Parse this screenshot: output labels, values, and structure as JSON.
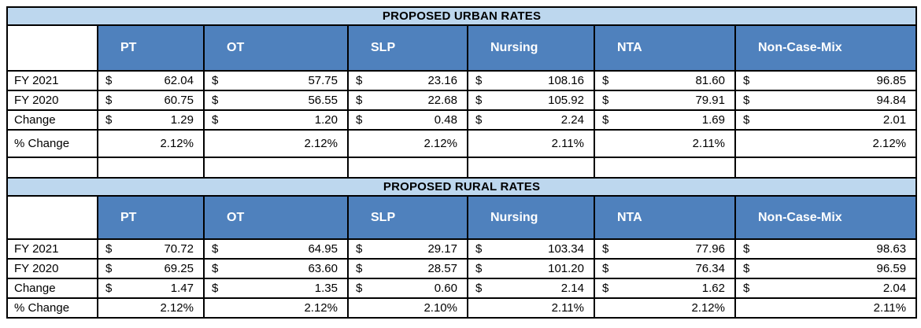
{
  "colors": {
    "title_bg": "#bdd7ee",
    "header_bg": "#4f81bd",
    "header_text": "#ffffff",
    "border": "#000000",
    "text": "#000000"
  },
  "currency_symbol": "$",
  "columns": [
    "PT",
    "OT",
    "SLP",
    "Nursing",
    "NTA",
    "Non-Case-Mix"
  ],
  "tables": [
    {
      "title": "PROPOSED URBAN RATES",
      "rows": [
        {
          "label": "FY 2021",
          "type": "currency",
          "values": [
            "62.04",
            "57.75",
            "23.16",
            "108.16",
            "81.60",
            "96.85"
          ]
        },
        {
          "label": "FY 2020",
          "type": "currency",
          "values": [
            "60.75",
            "56.55",
            "22.68",
            "105.92",
            "79.91",
            "94.84"
          ]
        },
        {
          "label": "Change",
          "type": "currency",
          "values": [
            "1.29",
            "1.20",
            "0.48",
            "2.24",
            "1.69",
            "2.01"
          ]
        },
        {
          "label": "% Change",
          "type": "percent",
          "values": [
            "2.12%",
            "2.12%",
            "2.12%",
            "2.11%",
            "2.11%",
            "2.12%"
          ]
        }
      ]
    },
    {
      "title": "PROPOSED RURAL RATES",
      "rows": [
        {
          "label": "FY 2021",
          "type": "currency",
          "values": [
            "70.72",
            "64.95",
            "29.17",
            "103.34",
            "77.96",
            "98.63"
          ]
        },
        {
          "label": "FY 2020",
          "type": "currency",
          "values": [
            "69.25",
            "63.60",
            "28.57",
            "101.20",
            "76.34",
            "96.59"
          ]
        },
        {
          "label": "Change",
          "type": "currency",
          "values": [
            "1.47",
            "1.35",
            "0.60",
            "2.14",
            "1.62",
            "2.04"
          ]
        },
        {
          "label": "% Change",
          "type": "percent",
          "values": [
            "2.12%",
            "2.12%",
            "2.10%",
            "2.11%",
            "2.12%",
            "2.11%"
          ]
        }
      ]
    }
  ]
}
